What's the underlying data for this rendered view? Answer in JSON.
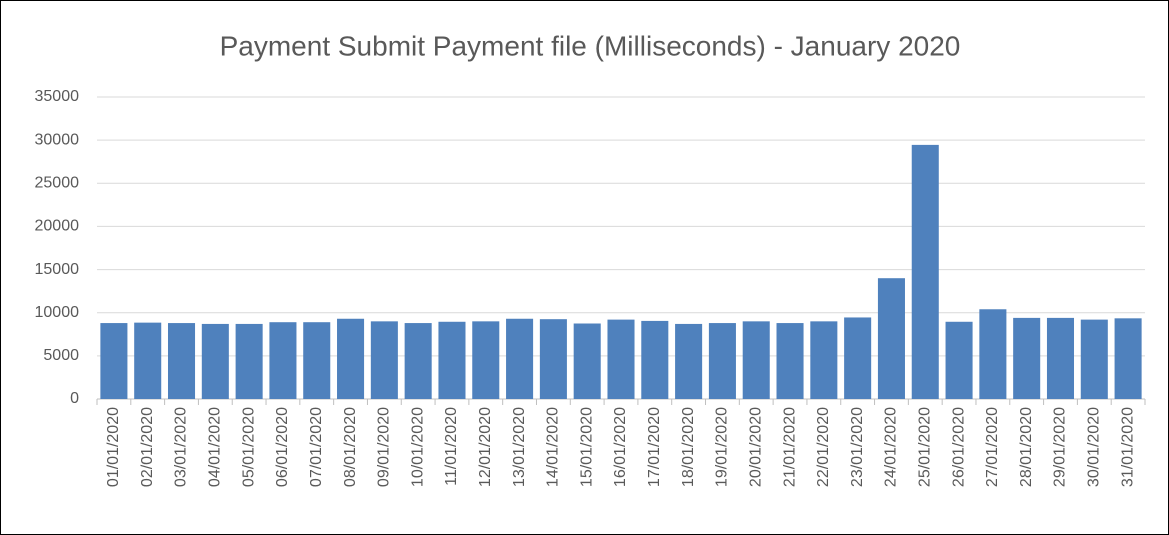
{
  "chart_data": {
    "type": "bar",
    "title": "Payment Submit Payment file (Milliseconds) - January 2020",
    "categories": [
      "01/01/2020",
      "02/01/2020",
      "03/01/2020",
      "04/01/2020",
      "05/01/2020",
      "06/01/2020",
      "07/01/2020",
      "08/01/2020",
      "09/01/2020",
      "10/01/2020",
      "11/01/2020",
      "12/01/2020",
      "13/01/2020",
      "14/01/2020",
      "15/01/2020",
      "16/01/2020",
      "17/01/2020",
      "18/01/2020",
      "19/01/2020",
      "20/01/2020",
      "21/01/2020",
      "22/01/2020",
      "23/01/2020",
      "24/01/2020",
      "25/01/2020",
      "26/01/2020",
      "27/01/2020",
      "28/01/2020",
      "29/01/2020",
      "30/01/2020",
      "31/01/2020"
    ],
    "values": [
      8800,
      8850,
      8800,
      8700,
      8700,
      8900,
      8900,
      9300,
      9000,
      8800,
      8950,
      9000,
      9300,
      9250,
      8750,
      9200,
      9050,
      8700,
      8800,
      9000,
      8800,
      9000,
      9450,
      14000,
      29450,
      8950,
      10400,
      9400,
      9400,
      9200,
      9350
    ],
    "color": "#4f81bd",
    "ylim": [
      0,
      35000
    ],
    "yticks": [
      0,
      5000,
      10000,
      15000,
      20000,
      25000,
      30000,
      35000
    ],
    "grid": true
  }
}
